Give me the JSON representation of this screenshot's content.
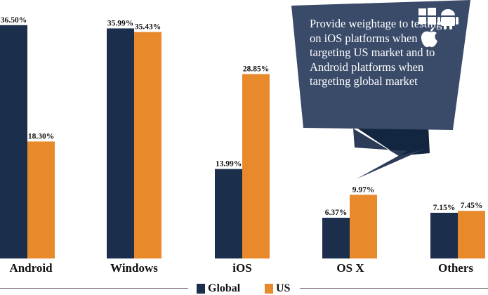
{
  "chart_data": {
    "type": "bar",
    "categories": [
      "Android",
      "Windows",
      "iOS",
      "OS X",
      "Others"
    ],
    "series": [
      {
        "name": "Global",
        "values": [
          36.5,
          35.99,
          13.99,
          6.37,
          7.15
        ],
        "labels": [
          "36.50%",
          "35.99%",
          "13.99%",
          "6.37%",
          "7.15%"
        ],
        "color": "#1b2e4b"
      },
      {
        "name": "US",
        "values": [
          18.3,
          35.43,
          28.85,
          9.97,
          7.45
        ],
        "labels": [
          "18.30%",
          "35.43%",
          "28.85%",
          "9.97%",
          "7.45%"
        ],
        "color": "#e8892b"
      }
    ],
    "ylim": [
      0,
      38.5
    ],
    "grid": false,
    "legend": "bottom",
    "annotation": "Provide weightage to testing on iOS platforms when targeting US market and to Android platforms when targeting global market",
    "annotation_icons": [
      "windows-icon",
      "android-icon",
      "apple-icon"
    ],
    "annotation_color": "#3a4a69"
  }
}
